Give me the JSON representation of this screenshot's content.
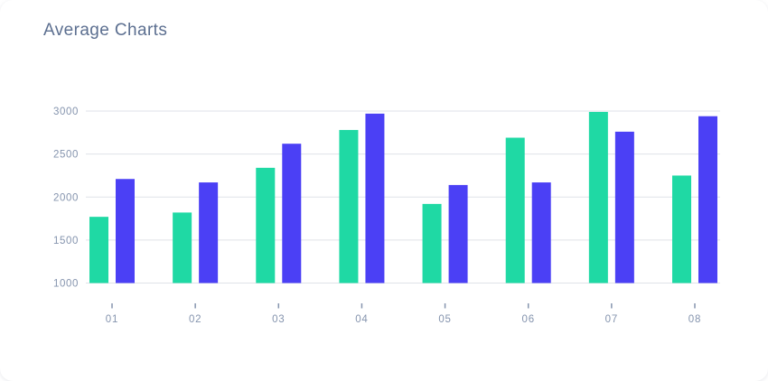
{
  "page": {
    "title": "Average Charts"
  },
  "colors": {
    "series_green": "#1fd9a4",
    "series_blue": "#4b40f5",
    "grid": "#dfe2e8",
    "axis_text": "#8594ae",
    "title_text": "#5c6f90",
    "card_background": "#ffffff"
  },
  "chart_data": {
    "type": "bar",
    "title": "Average Charts",
    "categories": [
      "01",
      "02",
      "03",
      "04",
      "05",
      "06",
      "07",
      "08"
    ],
    "series": [
      {
        "name": "green",
        "color": "#1fd9a4",
        "values": [
          1770,
          1820,
          2340,
          2780,
          1920,
          2690,
          2990,
          2250
        ]
      },
      {
        "name": "blue",
        "color": "#4b40f5",
        "values": [
          2210,
          2170,
          2620,
          2970,
          2140,
          2170,
          2760,
          2940
        ]
      }
    ],
    "xlabel": "",
    "ylabel": "",
    "ylim": [
      1000,
      3000
    ],
    "yticks": [
      1000,
      1500,
      2000,
      2500,
      3000
    ],
    "grid": true,
    "legend": "none"
  }
}
